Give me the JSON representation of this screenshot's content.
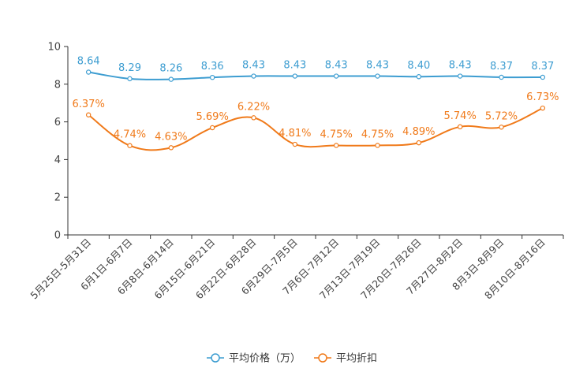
{
  "chart_data": {
    "type": "line",
    "title": "",
    "xlabel": "",
    "ylabel": "",
    "ylim": [
      0,
      10
    ],
    "yticks": [
      0,
      2,
      4,
      6,
      8,
      10
    ],
    "grid": false,
    "legend_position": "bottom-center",
    "categories": [
      "5月25日-5月31日",
      "6月1日-6月7日",
      "6月8日-6月14日",
      "6月15日-6月21日",
      "6月22日-6月28日",
      "6月29日-7月5日",
      "7月6日-7月12日",
      "7月13日-7月19日",
      "7月20日-7月26日",
      "7月27日-8月2日",
      "8月3日-8月9日",
      "8月10日-8月16日"
    ],
    "series": [
      {
        "name": "平均价格（万）",
        "color": "#3d9dd1",
        "values": [
          8.64,
          8.29,
          8.26,
          8.36,
          8.43,
          8.43,
          8.43,
          8.43,
          8.4,
          8.43,
          8.37,
          8.37
        ],
        "labels": [
          "8.64",
          "8.29",
          "8.26",
          "8.36",
          "8.43",
          "8.43",
          "8.43",
          "8.43",
          "8.40",
          "8.43",
          "8.37",
          "8.37"
        ]
      },
      {
        "name": "平均折扣",
        "color": "#f07a1a",
        "values": [
          6.37,
          4.74,
          4.63,
          5.69,
          6.22,
          4.81,
          4.75,
          4.75,
          4.89,
          5.74,
          5.72,
          6.73
        ],
        "labels": [
          "6.37%",
          "4.74%",
          "4.63%",
          "5.69%",
          "6.22%",
          "4.81%",
          "4.75%",
          "4.75%",
          "4.89%",
          "5.74%",
          "5.72%",
          "6.73%"
        ]
      }
    ]
  }
}
